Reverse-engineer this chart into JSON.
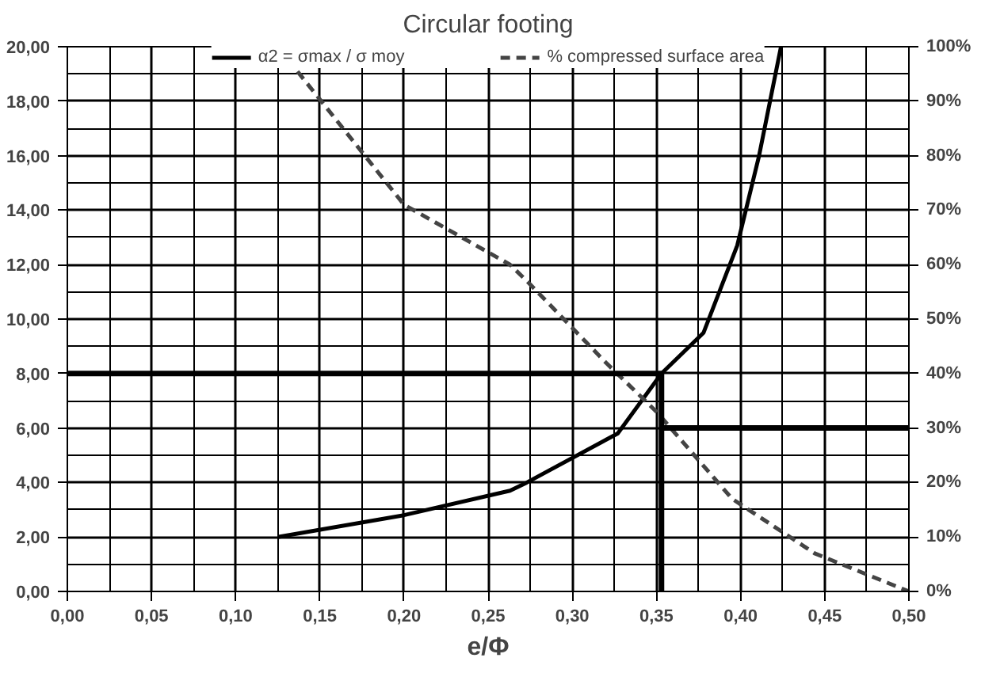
{
  "chart_data": {
    "type": "line",
    "title": "Circular footing",
    "xlabel": "e/Φ",
    "xlim": [
      0,
      0.5
    ],
    "xticks": [
      {
        "value": 0,
        "label": "0,00"
      },
      {
        "value": 0.05,
        "label": "0,05"
      },
      {
        "value": 0.1,
        "label": "0,10"
      },
      {
        "value": 0.15,
        "label": "0,15"
      },
      {
        "value": 0.2,
        "label": "0,20"
      },
      {
        "value": 0.25,
        "label": "0,25"
      },
      {
        "value": 0.3,
        "label": "0,30"
      },
      {
        "value": 0.35,
        "label": "0,35"
      },
      {
        "value": 0.4,
        "label": "0,40"
      },
      {
        "value": 0.45,
        "label": "0,45"
      },
      {
        "value": 0.5,
        "label": "0,50"
      }
    ],
    "ylim": [
      0,
      20
    ],
    "yticks": [
      {
        "value": 0,
        "label": "0,00"
      },
      {
        "value": 2,
        "label": "2,00"
      },
      {
        "value": 4,
        "label": "4,00"
      },
      {
        "value": 6,
        "label": "6,00"
      },
      {
        "value": 8,
        "label": "8,00"
      },
      {
        "value": 10,
        "label": "10,00"
      },
      {
        "value": 12,
        "label": "12,00"
      },
      {
        "value": 14,
        "label": "14,00"
      },
      {
        "value": 16,
        "label": "16,00"
      },
      {
        "value": 18,
        "label": "18,00"
      },
      {
        "value": 20,
        "label": "20,00"
      }
    ],
    "y2lim": [
      0,
      100
    ],
    "y2ticks": [
      {
        "value": 0,
        "label": "0%"
      },
      {
        "value": 10,
        "label": "10%"
      },
      {
        "value": 20,
        "label": "20%"
      },
      {
        "value": 30,
        "label": "30%"
      },
      {
        "value": 40,
        "label": "40%"
      },
      {
        "value": 50,
        "label": "50%"
      },
      {
        "value": 60,
        "label": "60%"
      },
      {
        "value": 70,
        "label": "70%"
      },
      {
        "value": 80,
        "label": "80%"
      },
      {
        "value": 90,
        "label": "90%"
      },
      {
        "value": 100,
        "label": "100%"
      }
    ],
    "grid": true,
    "legend": "top",
    "marker": "none",
    "series": [
      {
        "name": "α2 = σmax / σ moy",
        "color": "#000000",
        "line_style": "solid",
        "x": [
          0.125,
          0.2,
          0.263,
          0.273,
          0.327,
          0.353,
          0.378,
          0.398,
          0.411,
          0.424
        ],
        "values": [
          2.0,
          2.8,
          3.7,
          4.0,
          5.8,
          8.0,
          9.5,
          12.7,
          16.0,
          20.0
        ]
      },
      {
        "name": "% compressed surface area",
        "color": "#444444",
        "line_style": "dashed",
        "axis": "y2",
        "x": [
          0.125,
          0.2,
          0.263,
          0.273,
          0.32,
          0.35,
          0.395,
          0.444,
          0.5
        ],
        "values": [
          100,
          71,
          60,
          57,
          42,
          33,
          17,
          7,
          0
        ]
      },
      {
        "color": "#000000",
        "line_style": "solid",
        "x": [
          0,
          0.353,
          0.353
        ],
        "values": [
          8,
          8,
          0
        ]
      },
      {
        "color": "#000000",
        "line_style": "solid",
        "axis": "y2",
        "x": [
          0.353,
          0.5
        ],
        "values": [
          30,
          30
        ]
      }
    ]
  }
}
